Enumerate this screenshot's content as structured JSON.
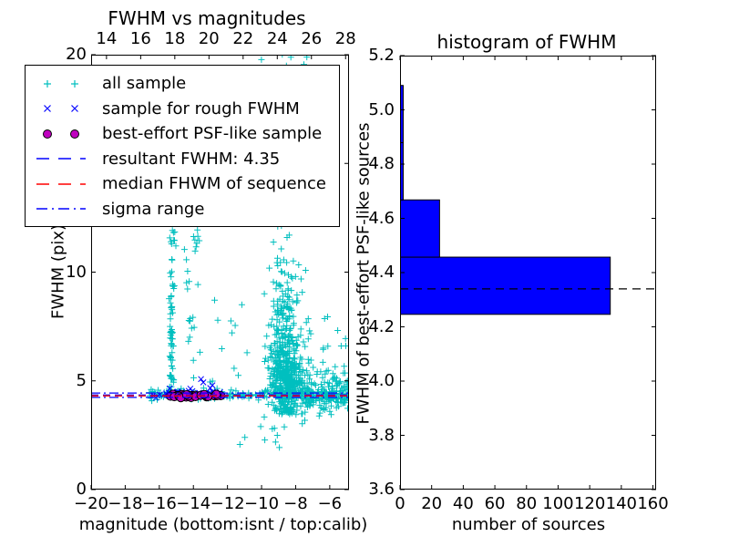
{
  "left_plot": {
    "title": "FWHM vs magnitudes",
    "xlabel": "magnitude (bottom:isnt / top:calib)",
    "ylabel": "FWHM (pix)",
    "x_range": [
      -20,
      -4.87
    ],
    "y_range": [
      0,
      20
    ],
    "top_x_range": [
      13.1,
      28.2
    ],
    "bottom_ticks": [
      {
        "v": -20,
        "label": "−20"
      },
      {
        "v": -18,
        "label": "−18"
      },
      {
        "v": -16,
        "label": "−16"
      },
      {
        "v": -14,
        "label": "−14"
      },
      {
        "v": -12,
        "label": "−12"
      },
      {
        "v": -10,
        "label": "−10"
      },
      {
        "v": -8,
        "label": "−8"
      },
      {
        "v": -6,
        "label": "−6"
      }
    ],
    "top_ticks": [
      {
        "v": 14,
        "label": "14"
      },
      {
        "v": 16,
        "label": "16"
      },
      {
        "v": 18,
        "label": "18"
      },
      {
        "v": 20,
        "label": "20"
      },
      {
        "v": 22,
        "label": "22"
      },
      {
        "v": 24,
        "label": "24"
      },
      {
        "v": 26,
        "label": "26"
      },
      {
        "v": 28,
        "label": "28"
      }
    ],
    "y_ticks": [
      {
        "v": 0,
        "label": "0"
      },
      {
        "v": 5,
        "label": "5"
      },
      {
        "v": 10,
        "label": "10"
      },
      {
        "v": 15,
        "label": "15"
      },
      {
        "v": 20,
        "label": "20"
      }
    ],
    "legend": [
      {
        "sample": "plus",
        "color": "#00BFBF",
        "label": "all sample"
      },
      {
        "sample": "x",
        "color": "#0000FF",
        "label": "sample for rough FWHM"
      },
      {
        "sample": "circle",
        "color": "#BF00BF",
        "edge": "#000000",
        "label": "best-effort PSF-like sample"
      },
      {
        "sample": "dashed",
        "color": "#0000FF",
        "label": "resultant FWHM: 4.35"
      },
      {
        "sample": "dashed",
        "color": "#FF0000",
        "label": "median FHWM of sequence"
      },
      {
        "sample": "dashdot",
        "color": "#0000FF",
        "label": "sigma range"
      }
    ]
  },
  "right_plot": {
    "title": "histogram of FWHM",
    "xlabel": "number of sources",
    "ylabel": "FWHM of best-effort PSF-like sources",
    "x_range": [
      0,
      162
    ],
    "y_range": [
      3.6,
      5.2
    ],
    "x_ticks": [
      {
        "v": 0,
        "label": "0"
      },
      {
        "v": 20,
        "label": "20"
      },
      {
        "v": 40,
        "label": "40"
      },
      {
        "v": 60,
        "label": "60"
      },
      {
        "v": 80,
        "label": "80"
      },
      {
        "v": 100,
        "label": "100"
      },
      {
        "v": 120,
        "label": "120"
      },
      {
        "v": 140,
        "label": "140"
      },
      {
        "v": 160,
        "label": "160"
      }
    ],
    "y_ticks": [
      {
        "v": 3.6,
        "label": "3.6"
      },
      {
        "v": 3.8,
        "label": "3.8"
      },
      {
        "v": 4.0,
        "label": "4.0"
      },
      {
        "v": 4.2,
        "label": "4.2"
      },
      {
        "v": 4.4,
        "label": "4.4"
      },
      {
        "v": 4.6,
        "label": "4.6"
      },
      {
        "v": 4.8,
        "label": "4.8"
      },
      {
        "v": 5.0,
        "label": "5.0"
      },
      {
        "v": 5.2,
        "label": "5.2"
      }
    ]
  },
  "chart_data": [
    {
      "type": "scatter",
      "title": "FWHM vs magnitudes",
      "xlabel": "magnitude (bottom:isnt / top:calib)",
      "ylabel": "FWHM (pix)",
      "xlim": [
        -20,
        -4.87
      ],
      "ylim": [
        0,
        20
      ],
      "grid": false,
      "legend_position": "upper left",
      "seed": 42,
      "series": [
        {
          "name": "all sample",
          "marker": "plus",
          "color": "#00BFBF",
          "clusters": [
            {
              "n": 85,
              "x": {
                "d": "u",
                "a": -16.6,
                "b": -12.3
              },
              "y": {
                "d": "n",
                "mu": 4.38,
                "s": 0.13,
                "min": 4.05,
                "max": 4.85
              }
            },
            {
              "n": 55,
              "x": {
                "d": "u",
                "a": -12.3,
                "b": -7.8
              },
              "y": {
                "d": "n",
                "mu": 4.35,
                "s": 0.1,
                "min": 4.0,
                "max": 4.7
              }
            },
            {
              "n": 60,
              "x": {
                "d": "u",
                "a": -7.8,
                "b": -4.9
              },
              "y": {
                "d": "n",
                "mu": 4.35,
                "s": 0.15,
                "min": 3.9,
                "max": 4.8
              }
            },
            {
              "n": 48,
              "x": {
                "d": "n",
                "mu": -15.28,
                "s": 0.07
              },
              "y": {
                "d": "u",
                "a": 4.55,
                "b": 8.6
              }
            },
            {
              "n": 22,
              "x": {
                "d": "n",
                "mu": -15.25,
                "s": 0.08
              },
              "y": {
                "d": "u",
                "a": 8.6,
                "b": 12.0
              }
            },
            {
              "n": 26,
              "x": {
                "d": "n",
                "mu": -14.05,
                "s": 0.22
              },
              "y": {
                "d": "u",
                "a": 4.9,
                "b": 12.0
              }
            },
            {
              "n": 12,
              "x": {
                "d": "u",
                "a": -13.6,
                "b": -10.8
              },
              "y": {
                "d": "u",
                "a": 4.8,
                "b": 9.8
              }
            },
            {
              "n": 380,
              "x": {
                "d": "n",
                "mu": -8.55,
                "s": 0.5,
                "min": -10.0,
                "max": -6.85
              },
              "y": {
                "d": "n",
                "mu": 4.9,
                "s": 0.85,
                "min": 3.45,
                "max": 7.5
              }
            },
            {
              "n": 230,
              "x": {
                "d": "n",
                "mu": -8.6,
                "s": 0.45,
                "min": -9.9,
                "max": -7.0
              },
              "y": {
                "d": "n",
                "mu": 7.0,
                "s": 2.0,
                "min": 4.2,
                "max": 12.0
              }
            },
            {
              "n": 60,
              "x": {
                "d": "n",
                "mu": -8.7,
                "s": 0.65,
                "min": -10.2,
                "max": -7.0
              },
              "y": {
                "d": "u",
                "a": 12.0,
                "b": 19.3
              }
            },
            {
              "n": 9,
              "x": {
                "d": "u",
                "a": -10.3,
                "b": -7.3
              },
              "y": {
                "d": "u",
                "a": 19.4,
                "b": 20.4
              }
            },
            {
              "n": 150,
              "x": {
                "d": "u",
                "a": -7.7,
                "b": -4.9
              },
              "y": {
                "d": "n",
                "mu": 4.45,
                "s": 0.5,
                "min": 3.2,
                "max": 6.3
              }
            },
            {
              "n": 22,
              "x": {
                "d": "u",
                "a": -7.4,
                "b": -4.95
              },
              "y": {
                "d": "u",
                "a": 5.2,
                "b": 8.0
              }
            },
            {
              "n": 6,
              "x": {
                "d": "u",
                "a": -11.3,
                "b": -8.8
              },
              "y": {
                "d": "u",
                "a": 1.8,
                "b": 2.5
              }
            },
            {
              "n": 9,
              "x": {
                "d": "u",
                "a": -10.1,
                "b": -7.4
              },
              "y": {
                "d": "u",
                "a": 2.7,
                "b": 3.5
              }
            }
          ]
        },
        {
          "name": "sample for rough FWHM",
          "marker": "x",
          "color": "#0000FF",
          "clusters": [
            {
              "n": 38,
              "x": {
                "d": "u",
                "a": -15.7,
                "b": -12.4
              },
              "y": {
                "d": "n",
                "mu": 4.45,
                "s": 0.16,
                "min": 4.05,
                "max": 5.0
              }
            },
            {
              "n": 3,
              "x": {
                "d": "u",
                "a": -16.45,
                "b": -15.8
              },
              "y": {
                "d": "n",
                "mu": 4.35,
                "s": 0.07
              }
            }
          ],
          "points": [
            [
              -13.55,
              5.08
            ],
            [
              -13.42,
              4.93
            ]
          ]
        },
        {
          "name": "best-effort PSF-like sample",
          "marker": "circle",
          "color": "#BF00BF",
          "edge": "#000000",
          "clusters": [
            {
              "n": 26,
              "x": {
                "d": "u",
                "a": -15.5,
                "b": -12.35
              },
              "y": {
                "d": "n",
                "mu": 4.32,
                "s": 0.045
              }
            }
          ]
        }
      ],
      "lines": [
        {
          "name": "resultant FWHM: 4.35",
          "y": 4.35,
          "color": "#0000FF",
          "style": "dashed"
        },
        {
          "name": "median FHWM of sequence",
          "y": 4.31,
          "color": "#FF0000",
          "style": "dashed"
        },
        {
          "name": "sigma range upper",
          "y": 4.44,
          "color": "#0000FF",
          "style": "dashdot"
        },
        {
          "name": "sigma range lower",
          "y": 4.24,
          "color": "#0000FF",
          "style": "dashdot"
        }
      ]
    },
    {
      "type": "barh",
      "title": "histogram of FWHM",
      "xlabel": "number of sources",
      "ylabel": "FWHM of best-effort PSF-like sources",
      "xlim": [
        0,
        162
      ],
      "ylim": [
        3.6,
        5.2
      ],
      "grid": false,
      "bar_color": "#0000FF",
      "bar_edge_color": "#000000",
      "bins": [
        {
          "lo": 4.246,
          "hi": 4.457,
          "count": 133
        },
        {
          "lo": 4.457,
          "hi": 4.668,
          "count": 25
        },
        {
          "lo": 4.668,
          "hi": 4.879,
          "count": 2
        },
        {
          "lo": 4.879,
          "hi": 5.09,
          "count": 2
        }
      ],
      "dashed_line": {
        "y": 4.34,
        "color": "#000000",
        "style": "dashed"
      }
    }
  ]
}
